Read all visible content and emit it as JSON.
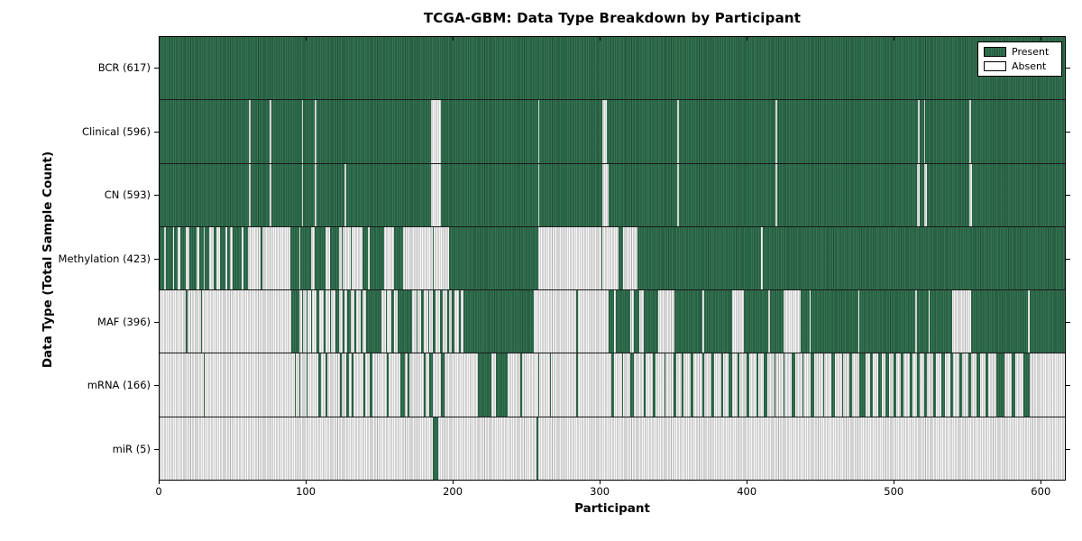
{
  "chart_data": {
    "type": "heatmap",
    "title": "TCGA-GBM: Data Type Breakdown by Participant",
    "xlabel": "Participant",
    "ylabel": "Data Type (Total Sample Count)",
    "n_participants": 617,
    "x_ticks": [
      0,
      100,
      200,
      300,
      400,
      500,
      600
    ],
    "grid": false,
    "legend": {
      "position": "upper right",
      "entries": [
        {
          "label": "Present",
          "color": "#2e714e"
        },
        {
          "label": "Absent",
          "color": "#ffffff"
        }
      ]
    },
    "colors": {
      "present": "#2e714e",
      "absent": "#d9d9d9",
      "axis": "#000000"
    },
    "rows": [
      {
        "name": "bcr",
        "label": "BCR (617)",
        "data_type": "BCR",
        "total": 617,
        "base": "present",
        "overlay": "absent",
        "segments": []
      },
      {
        "name": "clinical",
        "label": "Clinical (596)",
        "data_type": "Clinical",
        "total": 596,
        "base": "present",
        "overlay": "absent",
        "segments": [
          [
            61,
            62
          ],
          [
            75,
            76
          ],
          [
            97,
            98
          ],
          [
            106,
            107
          ],
          [
            185,
            192
          ],
          [
            258,
            259
          ],
          [
            302,
            305
          ],
          [
            353,
            354
          ],
          [
            420,
            421
          ],
          [
            517,
            518
          ],
          [
            521,
            522
          ],
          [
            552,
            553
          ]
        ]
      },
      {
        "name": "cn",
        "label": "CN (593)",
        "data_type": "CN",
        "total": 593,
        "base": "present",
        "overlay": "absent",
        "segments": [
          [
            61,
            62
          ],
          [
            75,
            76
          ],
          [
            97,
            98
          ],
          [
            106,
            107
          ],
          [
            126,
            127
          ],
          [
            185,
            192
          ],
          [
            258,
            259
          ],
          [
            302,
            306
          ],
          [
            353,
            354
          ],
          [
            420,
            421
          ],
          [
            516,
            518
          ],
          [
            521,
            523
          ],
          [
            552,
            554
          ]
        ]
      },
      {
        "name": "methylation",
        "label": "Methylation (423)",
        "data_type": "Methylation",
        "total": 423,
        "base": "absent",
        "overlay": "present",
        "segments": [
          [
            0,
            3
          ],
          [
            4,
            9
          ],
          [
            10,
            12
          ],
          [
            14,
            18
          ],
          [
            20,
            25
          ],
          [
            27,
            30
          ],
          [
            31,
            34
          ],
          [
            37,
            39
          ],
          [
            41,
            45
          ],
          [
            46,
            48
          ],
          [
            50,
            56
          ],
          [
            57,
            60
          ],
          [
            69,
            70
          ],
          [
            89,
            95
          ],
          [
            96,
            103
          ],
          [
            106,
            113
          ],
          [
            116,
            122
          ],
          [
            124,
            125
          ],
          [
            130,
            131
          ],
          [
            138,
            142
          ],
          [
            143,
            153
          ],
          [
            160,
            166
          ],
          [
            186,
            187
          ],
          [
            197,
            258
          ],
          [
            301,
            302
          ],
          [
            313,
            316
          ],
          [
            326,
            410
          ],
          [
            411,
            617
          ]
        ]
      },
      {
        "name": "maf",
        "label": "MAF (396)",
        "data_type": "MAF",
        "total": 396,
        "base": "absent",
        "overlay": "present",
        "segments": [
          [
            18,
            19
          ],
          [
            28,
            29
          ],
          [
            90,
            95
          ],
          [
            97,
            98
          ],
          [
            100,
            101
          ],
          [
            103,
            104
          ],
          [
            107,
            109
          ],
          [
            112,
            113
          ],
          [
            116,
            117
          ],
          [
            120,
            122
          ],
          [
            125,
            126
          ],
          [
            128,
            130
          ],
          [
            133,
            134
          ],
          [
            137,
            138
          ],
          [
            141,
            151
          ],
          [
            154,
            155
          ],
          [
            158,
            160
          ],
          [
            162,
            172
          ],
          [
            175,
            176
          ],
          [
            178,
            180
          ],
          [
            183,
            184
          ],
          [
            186,
            188
          ],
          [
            191,
            193
          ],
          [
            196,
            197
          ],
          [
            199,
            201
          ],
          [
            204,
            205
          ],
          [
            207,
            255
          ],
          [
            284,
            285
          ],
          [
            306,
            310
          ],
          [
            311,
            321
          ],
          [
            323,
            327
          ],
          [
            330,
            340
          ],
          [
            351,
            370
          ],
          [
            371,
            390
          ],
          [
            398,
            415
          ],
          [
            416,
            425
          ],
          [
            437,
            443
          ],
          [
            444,
            476
          ],
          [
            477,
            515
          ],
          [
            516,
            524
          ],
          [
            525,
            540
          ],
          [
            553,
            592
          ],
          [
            593,
            617
          ]
        ]
      },
      {
        "name": "mrna",
        "label": "mRNA (166)",
        "data_type": "mRNA",
        "total": 166,
        "base": "absent",
        "overlay": "present",
        "segments": [
          [
            30,
            31
          ],
          [
            92,
            93
          ],
          [
            95,
            96
          ],
          [
            100,
            101
          ],
          [
            108,
            110
          ],
          [
            113,
            114
          ],
          [
            123,
            124
          ],
          [
            127,
            129
          ],
          [
            131,
            132
          ],
          [
            139,
            140
          ],
          [
            143,
            145
          ],
          [
            155,
            156
          ],
          [
            164,
            167
          ],
          [
            169,
            170
          ],
          [
            180,
            181
          ],
          [
            184,
            186
          ],
          [
            192,
            194
          ],
          [
            217,
            226
          ],
          [
            229,
            237
          ],
          [
            246,
            247
          ],
          [
            258,
            259
          ],
          [
            266,
            267
          ],
          [
            284,
            285
          ],
          [
            308,
            310
          ],
          [
            315,
            316
          ],
          [
            321,
            323
          ],
          [
            330,
            331
          ],
          [
            336,
            338
          ],
          [
            344,
            345
          ],
          [
            350,
            352
          ],
          [
            356,
            357
          ],
          [
            362,
            364
          ],
          [
            370,
            371
          ],
          [
            376,
            378
          ],
          [
            383,
            384
          ],
          [
            388,
            390
          ],
          [
            394,
            395
          ],
          [
            400,
            402
          ],
          [
            407,
            408
          ],
          [
            412,
            414
          ],
          [
            419,
            420
          ],
          [
            425,
            426
          ],
          [
            431,
            433
          ],
          [
            438,
            439
          ],
          [
            444,
            446
          ],
          [
            452,
            453
          ],
          [
            458,
            460
          ],
          [
            465,
            466
          ],
          [
            470,
            472
          ],
          [
            477,
            481
          ],
          [
            484,
            486
          ],
          [
            490,
            492
          ],
          [
            495,
            497
          ],
          [
            500,
            502
          ],
          [
            505,
            507
          ],
          [
            511,
            513
          ],
          [
            516,
            518
          ],
          [
            521,
            523
          ],
          [
            527,
            529
          ],
          [
            533,
            535
          ],
          [
            539,
            541
          ],
          [
            545,
            547
          ],
          [
            551,
            553
          ],
          [
            557,
            559
          ],
          [
            563,
            565
          ],
          [
            570,
            576
          ],
          [
            581,
            583
          ],
          [
            589,
            593
          ]
        ]
      },
      {
        "name": "mir",
        "label": "miR (5)",
        "data_type": "miR",
        "total": 5,
        "base": "absent",
        "overlay": "present",
        "segments": [
          [
            186,
            190
          ],
          [
            257,
            258
          ]
        ]
      }
    ]
  }
}
